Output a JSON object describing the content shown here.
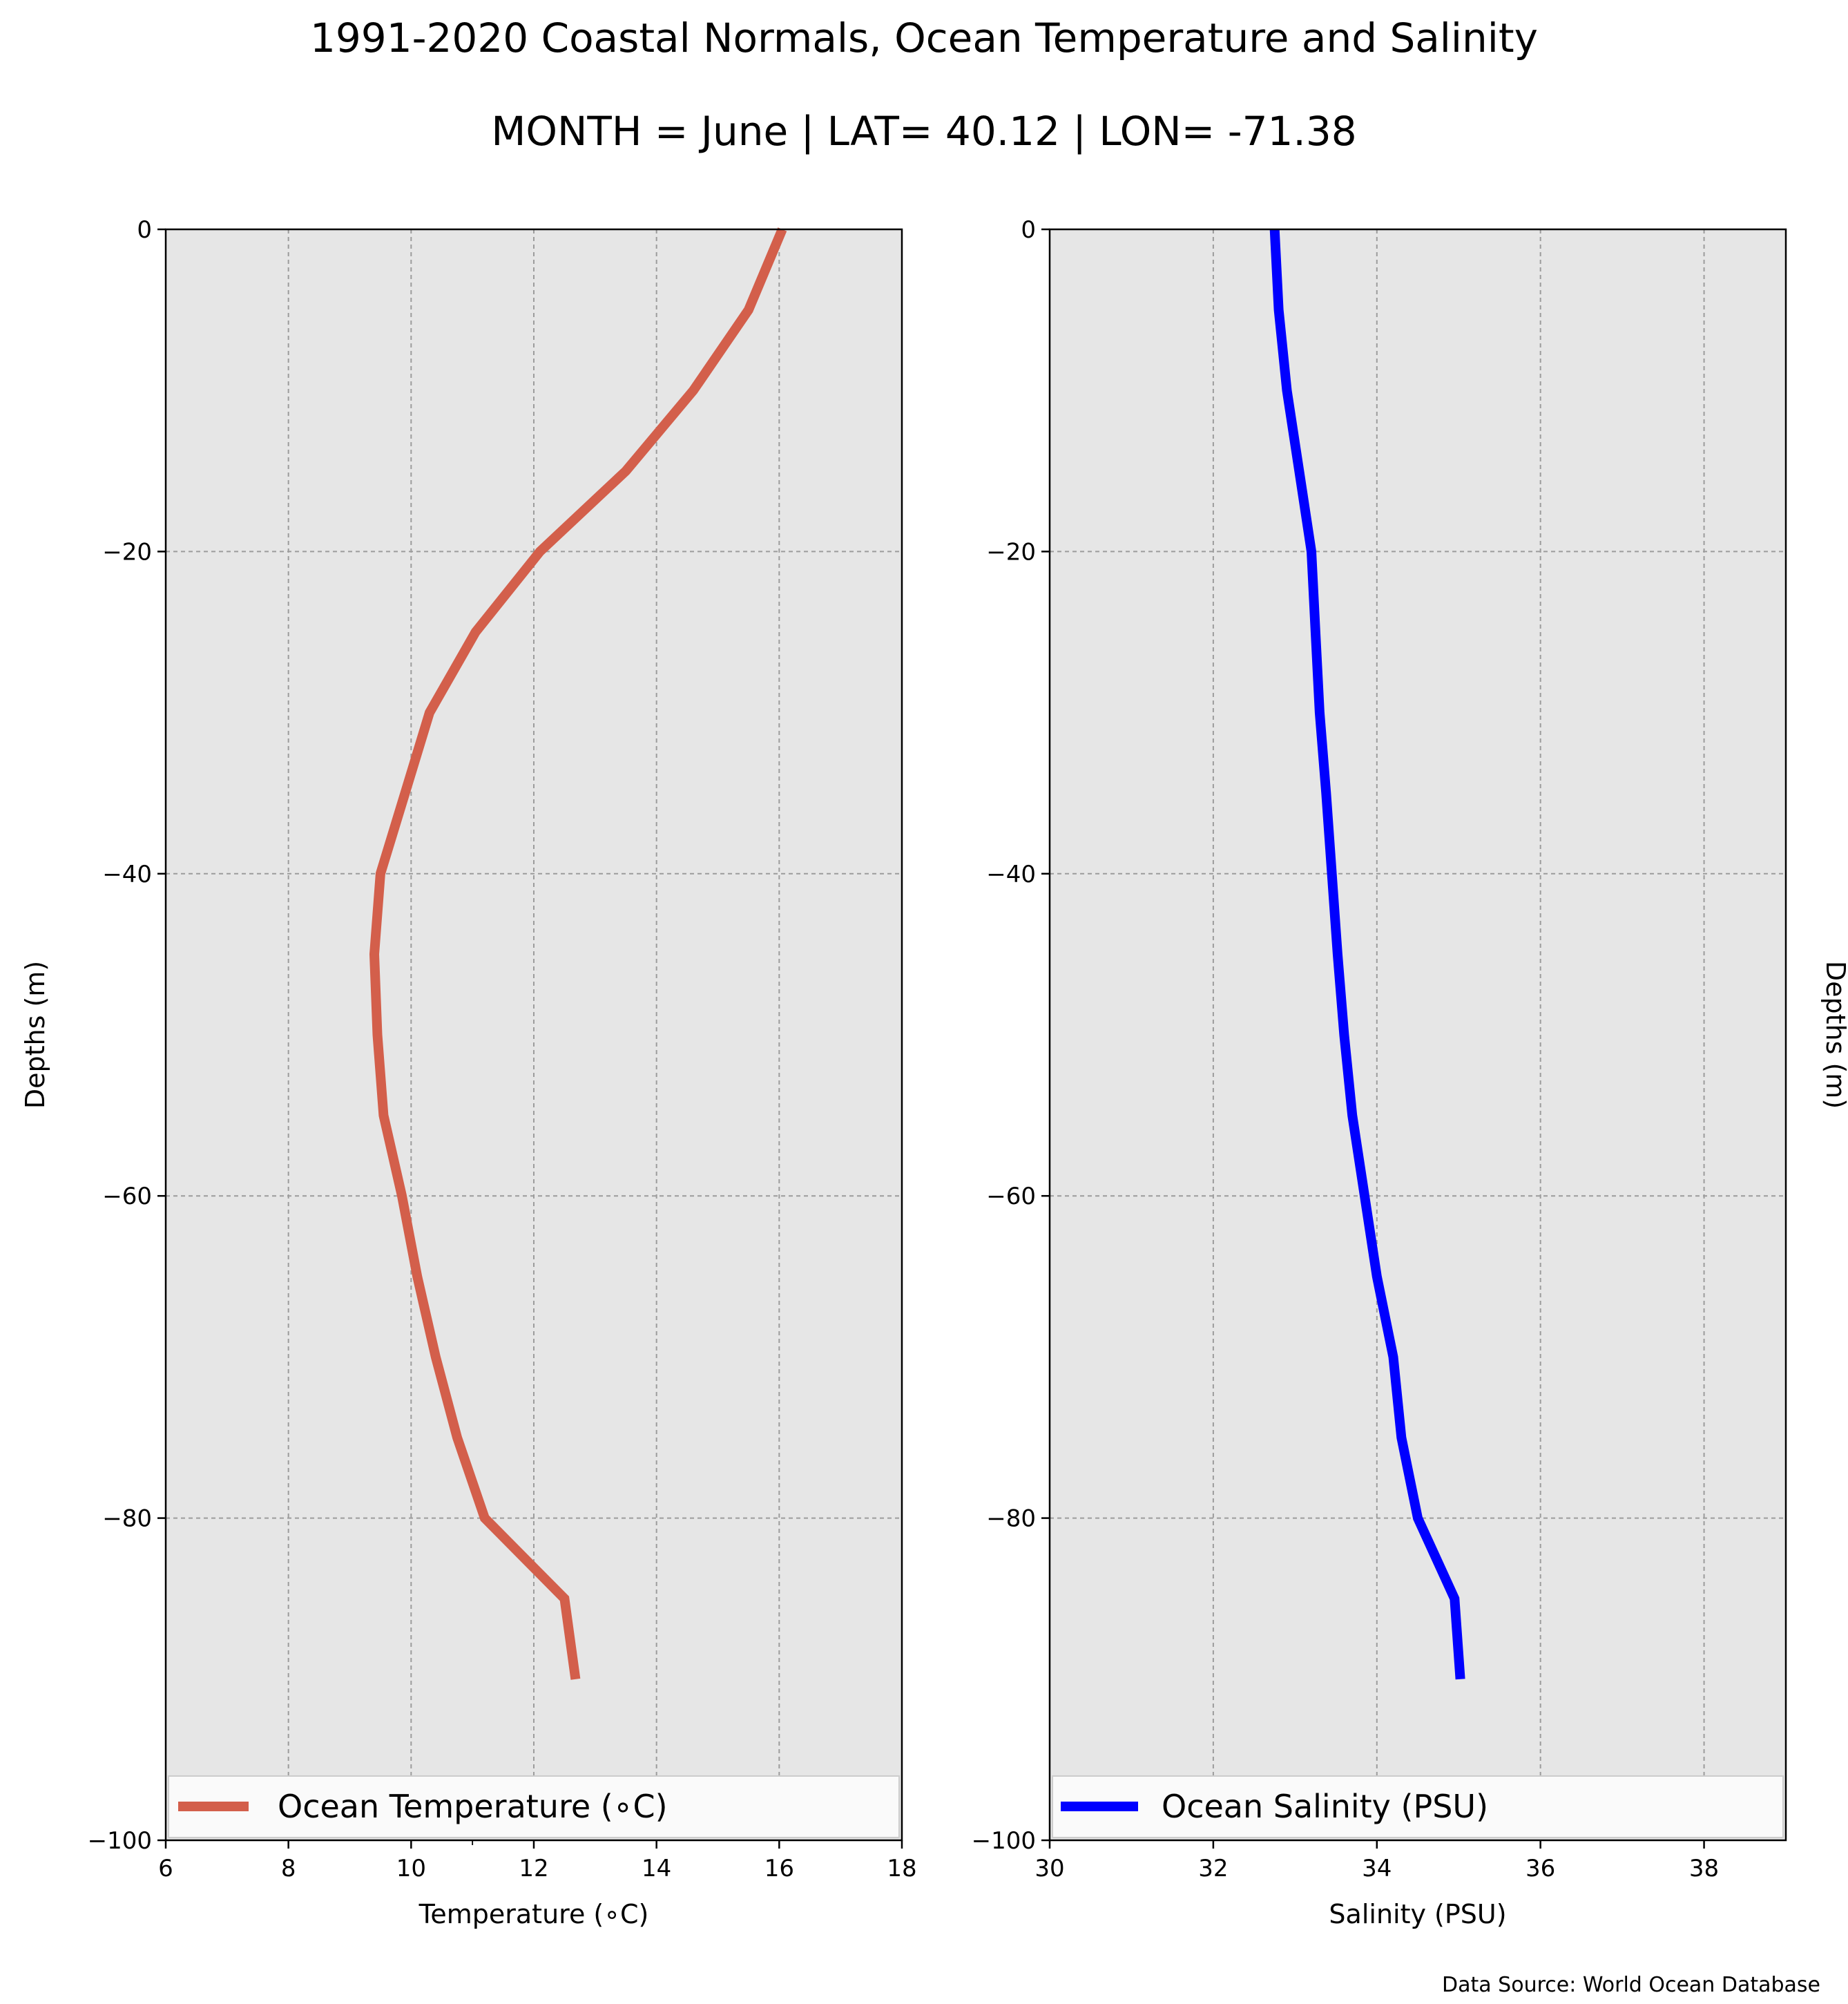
{
  "figure": {
    "title": "1991-2020 Coastal Normals, Ocean Temperature and Salinity",
    "subtitle": "MONTH = June | LAT= 40.12 | LON= -71.38",
    "source": "Data Source: World Ocean Database",
    "background": "#e6e6e6"
  },
  "chart_data": [
    {
      "type": "line",
      "xlabel": "Temperature (∘C)",
      "ylabel": "Depths (m)",
      "xlim": [
        6,
        18
      ],
      "ylim": [
        -100,
        0
      ],
      "xticks": [
        6,
        8,
        10,
        12,
        14,
        16,
        18
      ],
      "yticks": [
        0,
        -20,
        -40,
        -60,
        -80,
        -100
      ],
      "tick_labels_x": [
        "6",
        "8",
        "10",
        "12",
        "14",
        "16",
        "18"
      ],
      "tick_labels_y": [
        "0",
        "−20",
        "−40",
        "−60",
        "−80",
        "−100"
      ],
      "grid": true,
      "legend_position": "bottom",
      "series": [
        {
          "name": "Ocean Temperature (∘C)",
          "color": "#d35f4b",
          "depth": [
            0,
            -5,
            -10,
            -15,
            -20,
            -25,
            -30,
            -35,
            -40,
            -45,
            -50,
            -55,
            -60,
            -65,
            -70,
            -75,
            -80,
            -85,
            -90
          ],
          "x": [
            16.05,
            15.5,
            14.6,
            13.5,
            12.1,
            11.05,
            10.3,
            9.9,
            9.5,
            9.4,
            9.45,
            9.55,
            9.85,
            10.1,
            10.4,
            10.75,
            11.2,
            12.5,
            12.68
          ]
        }
      ]
    },
    {
      "type": "line",
      "xlabel": "Salinity (PSU)",
      "ylabel": "Depths (m)",
      "xlim": [
        30,
        39
      ],
      "ylim": [
        -100,
        0
      ],
      "xticks": [
        30,
        32,
        34,
        36,
        38
      ],
      "yticks": [
        0,
        -20,
        -40,
        -60,
        -80,
        -100
      ],
      "tick_labels_x": [
        "30",
        "32",
        "34",
        "36",
        "38"
      ],
      "tick_labels_y": [
        "0",
        "−20",
        "−40",
        "−60",
        "−80",
        "−100"
      ],
      "grid": true,
      "legend_position": "bottom",
      "series": [
        {
          "name": "Ocean Salinity (PSU)",
          "color": "#0000ff",
          "depth": [
            0,
            -5,
            -10,
            -15,
            -20,
            -25,
            -30,
            -35,
            -40,
            -45,
            -50,
            -55,
            -60,
            -65,
            -70,
            -75,
            -80,
            -85,
            -90
          ],
          "x": [
            32.75,
            32.8,
            32.9,
            33.05,
            33.2,
            33.25,
            33.3,
            33.38,
            33.45,
            33.52,
            33.6,
            33.7,
            33.85,
            34.0,
            34.2,
            34.3,
            34.5,
            34.95,
            35.02
          ]
        }
      ]
    }
  ]
}
